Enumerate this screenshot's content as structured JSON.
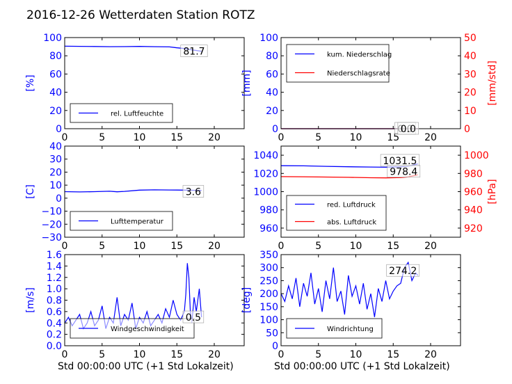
{
  "figure": {
    "title": "2016-12-26 Wetterdaten Station ROTZ",
    "xlabel": "Std 00:00:00 UTC (+1 Std Lokalzeit)"
  },
  "colors": {
    "left_axis": "#0000ff",
    "right_axis": "#ff0000",
    "line1": "#0000ff",
    "line2": "#ff0000"
  },
  "chart_data": [
    {
      "id": "humidity",
      "type": "line",
      "xlim": [
        0,
        24
      ],
      "ylim": [
        0,
        100
      ],
      "xticks": [
        "0",
        "5",
        "10",
        "15",
        "20"
      ],
      "x_tick_values": [
        0,
        5,
        10,
        15,
        20
      ],
      "yticks": [
        "0",
        "20",
        "40",
        "60",
        "80",
        "100"
      ],
      "y_tick_values": [
        0,
        20,
        40,
        60,
        80,
        100
      ],
      "ylabel": "[%]",
      "legend": [
        {
          "name": "rel. Luftfeuchte"
        }
      ],
      "legend_position": "lower-left",
      "series": [
        {
          "name": "rel. Luftfeuchte",
          "axis": "left",
          "color": "#0000ff",
          "x": [
            0,
            2,
            4,
            6,
            8,
            10,
            12,
            14,
            15,
            16,
            17,
            18.3
          ],
          "y": [
            90.5,
            90.4,
            90.2,
            90.0,
            90.1,
            90.3,
            90.0,
            89.8,
            88.8,
            88.0,
            86.5,
            85.0
          ]
        }
      ],
      "annotations": [
        {
          "text": "81.7",
          "x": 17.3,
          "y": 85
        }
      ]
    },
    {
      "id": "rain",
      "type": "line",
      "xlim": [
        0,
        24
      ],
      "ylim": [
        0,
        100
      ],
      "ylim_right": [
        0,
        50
      ],
      "xticks": [
        "0",
        "5",
        "10",
        "15",
        "20"
      ],
      "x_tick_values": [
        0,
        5,
        10,
        15,
        20
      ],
      "yticks": [
        "0",
        "20",
        "40",
        "60",
        "80",
        "100"
      ],
      "y_tick_values": [
        0,
        20,
        40,
        60,
        80,
        100
      ],
      "yticks_right": [
        "0",
        "10",
        "20",
        "30",
        "40",
        "50"
      ],
      "y_tick_values_right": [
        0,
        10,
        20,
        30,
        40,
        50
      ],
      "ylabel": "[mm]",
      "ylabel_right": "[mm/std]",
      "legend": [
        {
          "name": "kum. Niederschlag"
        },
        {
          "name": "Niederschlagsrate"
        }
      ],
      "legend_position": "upper-left",
      "series": [
        {
          "name": "kum. Niederschlag",
          "axis": "left",
          "color": "#0000ff",
          "x": [
            0,
            18.3
          ],
          "y": [
            0,
            0
          ]
        },
        {
          "name": "Niederschlagsrate",
          "axis": "right",
          "color": "#ff0000",
          "x": [
            0,
            18.3
          ],
          "y": [
            0,
            0
          ]
        }
      ],
      "annotations": [
        {
          "text": "0.0",
          "x": 16.6,
          "y": 0
        },
        {
          "text": "0.0",
          "x": 17.0,
          "y": 0
        }
      ]
    },
    {
      "id": "temperature",
      "type": "line",
      "xlim": [
        0,
        24
      ],
      "ylim": [
        -30,
        40
      ],
      "xticks": [
        "0",
        "5",
        "10",
        "15",
        "20"
      ],
      "x_tick_values": [
        0,
        5,
        10,
        15,
        20
      ],
      "yticks": [
        "−30",
        "−20",
        "−10",
        "0",
        "10",
        "20",
        "30",
        "40"
      ],
      "y_tick_values": [
        -30,
        -20,
        -10,
        0,
        10,
        20,
        30,
        40
      ],
      "ylabel": "[C]",
      "legend": [
        {
          "name": "Lufttemperatur"
        }
      ],
      "legend_position": "lower-left",
      "series": [
        {
          "name": "Lufttemperatur",
          "axis": "left",
          "color": "#0000ff",
          "x": [
            0,
            2,
            4,
            6,
            7,
            8,
            10,
            12,
            14,
            16,
            18.3
          ],
          "y": [
            5.0,
            4.8,
            5.0,
            5.3,
            4.9,
            5.2,
            6.2,
            6.4,
            6.3,
            6.2,
            5.9
          ]
        }
      ],
      "annotations": [
        {
          "text": "3.6",
          "x": 17.2,
          "y": 5
        }
      ]
    },
    {
      "id": "pressure",
      "type": "line",
      "xlim": [
        0,
        24
      ],
      "ylim": [
        950,
        1050
      ],
      "ylim_right": [
        910,
        1010
      ],
      "xticks": [
        "0",
        "5",
        "10",
        "15",
        "20"
      ],
      "x_tick_values": [
        0,
        5,
        10,
        15,
        20
      ],
      "yticks": [
        "960",
        "980",
        "1000",
        "1020",
        "1040"
      ],
      "y_tick_values": [
        960,
        980,
        1000,
        1020,
        1040
      ],
      "yticks_right": [
        "920",
        "940",
        "960",
        "980",
        "1000"
      ],
      "y_tick_values_right": [
        920,
        940,
        960,
        980,
        1000
      ],
      "ylabel_right": "[hPa]",
      "legend": [
        {
          "name": "red. Luftdruck"
        },
        {
          "name": "abs. Luftdruck"
        }
      ],
      "legend_position": "lower-left",
      "series": [
        {
          "name": "red. Luftdruck",
          "axis": "left",
          "color": "#0000ff",
          "x": [
            0,
            3,
            6,
            9,
            12,
            14,
            16,
            17,
            18.3
          ],
          "y": [
            1028.5,
            1028.3,
            1027.8,
            1027.3,
            1027.0,
            1026.8,
            1027.3,
            1027.8,
            1030.5
          ]
        },
        {
          "name": "abs. Luftdruck",
          "axis": "left",
          "color": "#ff0000",
          "x": [
            0,
            3,
            6,
            9,
            12,
            14,
            16,
            17,
            18.3
          ],
          "y": [
            1016.5,
            1016.3,
            1016.0,
            1015.7,
            1015.3,
            1015.1,
            1015.5,
            1016.2,
            1018.5
          ]
        }
      ],
      "annotations": [
        {
          "text": "1031.5",
          "x": 15.9,
          "y": 1034
        },
        {
          "text": "978.4",
          "x": 16.4,
          "y": 1022
        }
      ]
    },
    {
      "id": "wind",
      "type": "line",
      "xlim": [
        0,
        24
      ],
      "ylim": [
        0,
        1.6
      ],
      "xticks": [
        "0",
        "5",
        "10",
        "15",
        "20"
      ],
      "x_tick_values": [
        0,
        5,
        10,
        15,
        20
      ],
      "yticks": [
        "0.0",
        "0.2",
        "0.4",
        "0.6",
        "0.8",
        "1.0",
        "1.2",
        "1.4",
        "1.6"
      ],
      "y_tick_values": [
        0,
        0.2,
        0.4,
        0.6,
        0.8,
        1.0,
        1.2,
        1.4,
        1.6
      ],
      "ylabel": "[m/s]",
      "legend": [
        {
          "name": "Windgeschwindigkeit"
        }
      ],
      "legend_position": "lower-left",
      "series": [
        {
          "name": "Windgeschwindigkeit",
          "axis": "left",
          "color": "#0000ff",
          "x": [
            0,
            0.5,
            1,
            1.5,
            2,
            2.5,
            3,
            3.5,
            4,
            4.5,
            5,
            5.5,
            6,
            6.5,
            7,
            7.5,
            8,
            8.5,
            9,
            9.5,
            10,
            10.5,
            11,
            11.5,
            12,
            12.5,
            13,
            13.5,
            14,
            14.5,
            15,
            15.5,
            16,
            16.2,
            16.4,
            16.6,
            16.8,
            17,
            17.3,
            17.6,
            18,
            18.3
          ],
          "y": [
            0.4,
            0.5,
            0.35,
            0.45,
            0.55,
            0.3,
            0.4,
            0.6,
            0.35,
            0.45,
            0.7,
            0.3,
            0.5,
            0.4,
            0.85,
            0.35,
            0.55,
            0.45,
            0.75,
            0.3,
            0.5,
            0.4,
            0.6,
            0.35,
            0.45,
            0.55,
            0.4,
            0.65,
            0.5,
            0.8,
            0.55,
            0.45,
            0.6,
            0.9,
            1.45,
            1.2,
            0.6,
            0.4,
            0.85,
            0.6,
            1.0,
            0.5
          ]
        }
      ],
      "annotations": [
        {
          "text": "0.5",
          "x": 17.2,
          "y": 0.5
        }
      ]
    },
    {
      "id": "direction",
      "type": "line",
      "xlim": [
        0,
        24
      ],
      "ylim": [
        0,
        350
      ],
      "xticks": [
        "0",
        "5",
        "10",
        "15",
        "20"
      ],
      "x_tick_values": [
        0,
        5,
        10,
        15,
        20
      ],
      "yticks": [
        "0",
        "50",
        "100",
        "150",
        "200",
        "250",
        "300",
        "350"
      ],
      "y_tick_values": [
        0,
        50,
        100,
        150,
        200,
        250,
        300,
        350
      ],
      "ylabel": "[deg]",
      "legend": [
        {
          "name": "Windrichtung"
        }
      ],
      "legend_position": "lower-left",
      "series": [
        {
          "name": "Windrichtung",
          "axis": "left",
          "color": "#0000ff",
          "x": [
            0,
            0.5,
            1,
            1.5,
            2,
            2.5,
            3,
            3.5,
            4,
            4.5,
            5,
            5.5,
            6,
            6.5,
            7,
            7.5,
            8,
            8.5,
            9,
            9.5,
            10,
            10.5,
            11,
            11.5,
            12,
            12.5,
            13,
            13.5,
            14,
            14.5,
            15,
            15.5,
            16,
            16.5,
            17,
            17.5,
            18,
            18.3
          ],
          "y": [
            200,
            170,
            230,
            180,
            260,
            150,
            240,
            190,
            280,
            160,
            220,
            130,
            250,
            180,
            300,
            170,
            210,
            120,
            270,
            190,
            230,
            160,
            240,
            140,
            200,
            110,
            220,
            170,
            250,
            180,
            210,
            230,
            240,
            300,
            320,
            250,
            280,
            270
          ]
        }
      ],
      "annotations": [
        {
          "text": "274.2",
          "x": 16.3,
          "y": 288
        }
      ]
    }
  ]
}
